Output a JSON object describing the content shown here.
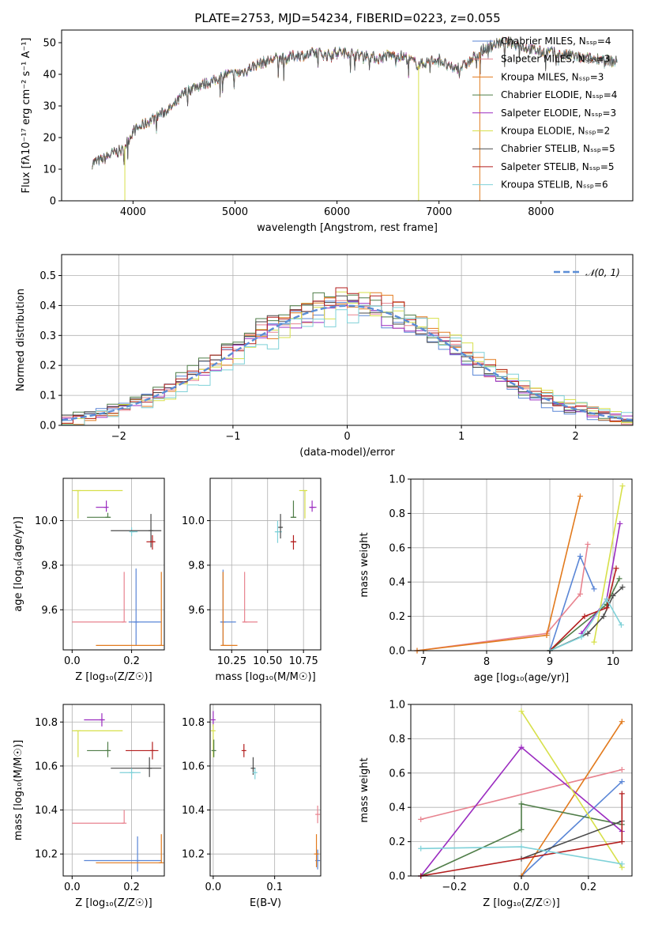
{
  "colors": {
    "c0": "#5a86d6",
    "c1": "#e8838f",
    "c2": "#e27a1d",
    "c3": "#4f7d48",
    "c4": "#9b2cc0",
    "c5": "#d7e04a",
    "c6": "#4a4a4a",
    "c7": "#b31e1e",
    "c8": "#7fd1d8",
    "normal": "#5b8dd6"
  },
  "chart_data": [
    {
      "id": "spectrum",
      "type": "line",
      "title": "PLATE=2753, MJD=54234, FIBERID=0223, z=0.055",
      "xlabel": "wavelength [Angstrom, rest frame]",
      "ylabel": "Flux [f_λ10^-17 erg cm^-2 s^-1 A^-1]",
      "xlim": [
        3300,
        8900
      ],
      "ylim": [
        0,
        54
      ],
      "xticks": [
        4000,
        5000,
        6000,
        7000,
        8000
      ],
      "yticks": [
        0,
        10,
        20,
        30,
        40,
        50
      ],
      "grid": false,
      "legend_position": "right",
      "legend": [
        "Chabrier MILES, N_SSP=4",
        "Salpeter MILES, N_SSP=3",
        "Kroupa MILES, N_SSP=3",
        "Chabrier ELODIE, N_SSP=4",
        "Salpeter ELODIE, N_SSP=3",
        "Kroupa ELODIE, N_SSP=2",
        "Chabrier STELIB, N_SSP=5",
        "Salpeter STELIB, N_SSP=5",
        "Kroupa STELIB, N_SSP=6"
      ],
      "continuum": [
        [
          3600,
          12
        ],
        [
          3700,
          13
        ],
        [
          3800,
          15
        ],
        [
          3900,
          16
        ],
        [
          3950,
          19
        ],
        [
          4000,
          22
        ],
        [
          4100,
          24
        ],
        [
          4200,
          26
        ],
        [
          4300,
          28
        ],
        [
          4400,
          30
        ],
        [
          4500,
          34
        ],
        [
          4600,
          36
        ],
        [
          4700,
          37
        ],
        [
          4800,
          38
        ],
        [
          4900,
          40
        ],
        [
          5000,
          40
        ],
        [
          5100,
          41
        ],
        [
          5200,
          43
        ],
        [
          5300,
          44
        ],
        [
          5400,
          45
        ],
        [
          5500,
          45
        ],
        [
          5600,
          46
        ],
        [
          5700,
          46
        ],
        [
          5800,
          47
        ],
        [
          5900,
          46
        ],
        [
          6000,
          47
        ],
        [
          6100,
          47
        ],
        [
          6200,
          46
        ],
        [
          6300,
          46
        ],
        [
          6400,
          45
        ],
        [
          6500,
          46
        ],
        [
          6600,
          46
        ],
        [
          6700,
          45
        ],
        [
          6800,
          43
        ],
        [
          6900,
          44
        ],
        [
          7000,
          45
        ],
        [
          7100,
          42
        ],
        [
          7200,
          42
        ],
        [
          7300,
          44
        ],
        [
          7400,
          47
        ],
        [
          7500,
          49
        ],
        [
          7600,
          50
        ],
        [
          7700,
          50
        ],
        [
          7800,
          49
        ],
        [
          7900,
          48
        ],
        [
          8000,
          47
        ],
        [
          8100,
          47
        ],
        [
          8200,
          46
        ],
        [
          8300,
          46
        ],
        [
          8400,
          45
        ],
        [
          8500,
          45
        ],
        [
          8600,
          45
        ],
        [
          8700,
          44
        ],
        [
          8750,
          44
        ]
      ],
      "spikes": [
        {
          "x": 3920,
          "y": 0,
          "series": "Kroupa ELODIE"
        },
        {
          "x": 6800,
          "y": 0,
          "series": "Kroupa ELODIE"
        },
        {
          "x": 7400,
          "y": 0,
          "series": "Kroupa MILES"
        }
      ]
    },
    {
      "id": "residuals",
      "type": "histogram",
      "xlabel": "(data-model)/error",
      "ylabel": "Normed distribution",
      "xlim": [
        -2.5,
        2.5
      ],
      "ylim": [
        0,
        0.57
      ],
      "xticks": [
        -2,
        -1,
        0,
        1,
        2
      ],
      "yticks": [
        0.0,
        0.1,
        0.2,
        0.3,
        0.4,
        0.5
      ],
      "grid": true,
      "legend": [
        "N(0,1)"
      ],
      "legend_position": "top-right",
      "bin_width": 0.1
    },
    {
      "id": "age_vs_Z",
      "type": "scatter",
      "xlabel": "Z [log10(Z/Z☉)]",
      "ylabel": "age  [log10(age/yr)]",
      "xlim": [
        -0.03,
        0.31
      ],
      "ylim": [
        9.42,
        10.19
      ],
      "xticks": [
        0.0,
        0.2
      ],
      "yticks": [
        9.6,
        9.8,
        10.0
      ],
      "grid": true,
      "points": [
        {
          "series": "Kroupa ELODIE",
          "x": 0.02,
          "y": 10.135,
          "xlo": 0.0,
          "xhi": 0.17,
          "ylo": 10.01,
          "yhi": 10.135
        },
        {
          "series": "Salpeter ELODIE",
          "x": 0.115,
          "y": 10.06,
          "xlo": 0.08,
          "xhi": 0.115,
          "ylo": 10.04,
          "yhi": 10.09
        },
        {
          "series": "Chabrier ELODIE",
          "x": 0.12,
          "y": 10.015,
          "xlo": 0.05,
          "xhi": 0.13,
          "ylo": 10.015,
          "yhi": 10.035
        },
        {
          "series": "Kroupa STELIB",
          "x": 0.2,
          "y": 9.95,
          "xlo": 0.2,
          "xhi": 0.22,
          "ylo": 9.93,
          "yhi": 9.97
        },
        {
          "series": "Chabrier STELIB",
          "x": 0.265,
          "y": 9.955,
          "xlo": 0.13,
          "xhi": 0.3,
          "ylo": 9.88,
          "yhi": 10.03
        },
        {
          "series": "Salpeter STELIB",
          "x": 0.27,
          "y": 9.905,
          "xlo": 0.25,
          "xhi": 0.28,
          "ylo": 9.87,
          "yhi": 9.935
        },
        {
          "series": "Salpeter MILES",
          "x": 0.175,
          "y": 9.545,
          "xlo": 0.0,
          "xhi": 0.175,
          "ylo": 9.545,
          "yhi": 9.77
        },
        {
          "series": "Chabrier MILES",
          "x": 0.215,
          "y": 9.545,
          "xlo": 0.19,
          "xhi": 0.3,
          "ylo": 9.44,
          "yhi": 9.785
        },
        {
          "series": "Kroupa MILES",
          "x": 0.3,
          "y": 9.44,
          "xlo": 0.08,
          "xhi": 0.3,
          "ylo": 9.44,
          "yhi": 9.77
        }
      ]
    },
    {
      "id": "age_vs_mass",
      "type": "scatter",
      "xlabel": "mass [log10(M/M☉)]",
      "ylabel": "",
      "xlim": [
        10.1,
        10.87
      ],
      "ylim": [
        9.42,
        10.19
      ],
      "xticks": [
        10.25,
        10.5,
        10.75
      ],
      "yticks": [
        9.6,
        9.8,
        10.0
      ],
      "grid": true,
      "points": [
        {
          "series": "Kroupa ELODIE",
          "x": 10.76,
          "y": 10.135,
          "xlo": 10.72,
          "xhi": 10.77,
          "ylo": 10.01,
          "yhi": 10.135
        },
        {
          "series": "Salpeter ELODIE",
          "x": 10.81,
          "y": 10.06,
          "xlo": 10.79,
          "xhi": 10.84,
          "ylo": 10.04,
          "yhi": 10.09
        },
        {
          "series": "Chabrier ELODIE",
          "x": 10.68,
          "y": 10.015,
          "xlo": 10.66,
          "xhi": 10.7,
          "ylo": 10.015,
          "yhi": 10.09
        },
        {
          "series": "Kroupa STELIB",
          "x": 10.57,
          "y": 9.95,
          "xlo": 10.55,
          "xhi": 10.6,
          "ylo": 9.9,
          "yhi": 10.0
        },
        {
          "series": "Chabrier STELIB",
          "x": 10.59,
          "y": 9.97,
          "xlo": 10.58,
          "xhi": 10.6,
          "ylo": 9.92,
          "yhi": 10.03
        },
        {
          "series": "Salpeter STELIB",
          "x": 10.68,
          "y": 9.905,
          "xlo": 10.66,
          "xhi": 10.7,
          "ylo": 9.87,
          "yhi": 9.935
        },
        {
          "series": "Salpeter MILES",
          "x": 10.34,
          "y": 9.545,
          "xlo": 10.33,
          "xhi": 10.43,
          "ylo": 9.545,
          "yhi": 9.77
        },
        {
          "series": "Chabrier MILES",
          "x": 10.19,
          "y": 9.545,
          "xlo": 10.17,
          "xhi": 10.28,
          "ylo": 9.44,
          "yhi": 9.78
        },
        {
          "series": "Kroupa MILES",
          "x": 10.19,
          "y": 9.44,
          "xlo": 10.19,
          "xhi": 10.29,
          "ylo": 9.44,
          "yhi": 9.77
        }
      ]
    },
    {
      "id": "weight_vs_age",
      "type": "line",
      "xlabel": "age  [log10(age/yr)]",
      "ylabel": "mass weight",
      "xlim": [
        6.8,
        10.3
      ],
      "ylim": [
        0.0,
        1.0
      ],
      "xticks": [
        7,
        8,
        9,
        10
      ],
      "yticks": [
        0.0,
        0.2,
        0.4,
        0.6,
        0.8,
        1.0
      ],
      "grid": true,
      "series": [
        {
          "name": "Chabrier MILES",
          "points": [
            [
              9.0,
              0.0
            ],
            [
              9.48,
              0.55
            ],
            [
              9.7,
              0.36
            ]
          ]
        },
        {
          "name": "Salpeter MILES",
          "points": [
            [
              6.9,
              0.0
            ],
            [
              8.95,
              0.1
            ],
            [
              9.48,
              0.33
            ],
            [
              9.6,
              0.62
            ]
          ]
        },
        {
          "name": "Kroupa MILES",
          "points": [
            [
              6.9,
              0.0
            ],
            [
              8.95,
              0.09
            ],
            [
              9.48,
              0.9
            ]
          ]
        },
        {
          "name": "Chabrier ELODIE",
          "points": [
            [
              9.0,
              0.0
            ],
            [
              9.9,
              0.27
            ],
            [
              10.1,
              0.42
            ]
          ]
        },
        {
          "name": "Salpeter ELODIE",
          "points": [
            [
              9.5,
              0.1
            ],
            [
              9.9,
              0.3
            ],
            [
              10.11,
              0.74
            ]
          ]
        },
        {
          "name": "Kroupa ELODIE",
          "points": [
            [
              9.7,
              0.05
            ],
            [
              10.15,
              0.96
            ]
          ]
        },
        {
          "name": "Chabrier STELIB",
          "points": [
            [
              9.0,
              0.0
            ],
            [
              9.6,
              0.1
            ],
            [
              9.85,
              0.2
            ],
            [
              10.0,
              0.32
            ],
            [
              10.15,
              0.37
            ]
          ]
        },
        {
          "name": "Salpeter STELIB",
          "points": [
            [
              9.0,
              0.0
            ],
            [
              9.55,
              0.2
            ],
            [
              9.9,
              0.25
            ],
            [
              10.05,
              0.48
            ]
          ]
        },
        {
          "name": "Kroupa STELIB",
          "points": [
            [
              9.0,
              0.0
            ],
            [
              9.5,
              0.08
            ],
            [
              9.9,
              0.3
            ],
            [
              10.13,
              0.15
            ]
          ]
        }
      ]
    },
    {
      "id": "mass_vs_Z",
      "type": "scatter",
      "xlabel": "Z [log10(Z/Z☉)]",
      "ylabel": "mass [log10(M/M☉)]",
      "xlim": [
        -0.03,
        0.31
      ],
      "ylim": [
        10.1,
        10.88
      ],
      "xticks": [
        0.0,
        0.2
      ],
      "yticks": [
        10.2,
        10.4,
        10.6,
        10.8
      ],
      "grid": true,
      "points": [
        {
          "series": "Salpeter ELODIE",
          "x": 0.1,
          "y": 10.81,
          "xlo": 0.04,
          "xhi": 0.11,
          "ylo": 10.78,
          "yhi": 10.84
        },
        {
          "series": "Kroupa ELODIE",
          "x": 0.02,
          "y": 10.76,
          "xlo": 0.0,
          "xhi": 0.17,
          "ylo": 10.64,
          "yhi": 10.76
        },
        {
          "series": "Chabrier ELODIE",
          "x": 0.12,
          "y": 10.67,
          "xlo": 0.05,
          "xhi": 0.13,
          "ylo": 10.64,
          "yhi": 10.71
        },
        {
          "series": "Salpeter STELIB",
          "x": 0.27,
          "y": 10.67,
          "xlo": 0.18,
          "xhi": 0.29,
          "ylo": 10.63,
          "yhi": 10.71
        },
        {
          "series": "Chabrier STELIB",
          "x": 0.26,
          "y": 10.59,
          "xlo": 0.13,
          "xhi": 0.3,
          "ylo": 10.55,
          "yhi": 10.64
        },
        {
          "series": "Kroupa STELIB",
          "x": 0.2,
          "y": 10.57,
          "xlo": 0.16,
          "xhi": 0.23,
          "ylo": 10.54,
          "yhi": 10.59
        },
        {
          "series": "Salpeter MILES",
          "x": 0.175,
          "y": 10.34,
          "xlo": 0.0,
          "xhi": 0.175,
          "ylo": 10.34,
          "yhi": 10.4
        },
        {
          "series": "Chabrier MILES",
          "x": 0.22,
          "y": 10.17,
          "xlo": 0.04,
          "xhi": 0.3,
          "ylo": 10.12,
          "yhi": 10.28
        },
        {
          "series": "Kroupa MILES",
          "x": 0.3,
          "y": 10.16,
          "xlo": 0.08,
          "xhi": 0.3,
          "ylo": 10.16,
          "yhi": 10.29
        }
      ]
    },
    {
      "id": "mass_vs_ebv",
      "type": "scatter",
      "xlabel": "E(B-V)",
      "ylabel": "",
      "xlim": [
        -0.005,
        0.175
      ],
      "ylim": [
        10.1,
        10.88
      ],
      "xticks": [
        0.0,
        0.1
      ],
      "yticks": [
        10.2,
        10.4,
        10.6,
        10.8
      ],
      "grid": true,
      "points": [
        {
          "series": "Salpeter ELODIE",
          "x": 0.0,
          "y": 10.81,
          "ylo": 10.78,
          "yhi": 10.85
        },
        {
          "series": "Kroupa ELODIE",
          "x": 0.0,
          "y": 10.76,
          "ylo": 10.64,
          "yhi": 10.79
        },
        {
          "series": "Chabrier ELODIE",
          "x": 0.001,
          "y": 10.67,
          "ylo": 10.64,
          "yhi": 10.72
        },
        {
          "series": "Salpeter STELIB",
          "x": 0.05,
          "y": 10.67,
          "ylo": 10.64,
          "yhi": 10.7
        },
        {
          "series": "Chabrier STELIB",
          "x": 0.065,
          "y": 10.59,
          "ylo": 10.56,
          "yhi": 10.64
        },
        {
          "series": "Kroupa STELIB",
          "x": 0.068,
          "y": 10.57,
          "ylo": 10.54,
          "yhi": 10.59
        },
        {
          "series": "Salpeter MILES",
          "x": 0.17,
          "y": 10.38,
          "ylo": 10.34,
          "yhi": 10.42
        },
        {
          "series": "Chabrier MILES",
          "x": 0.17,
          "y": 10.17,
          "ylo": 10.13,
          "yhi": 10.22
        },
        {
          "series": "Kroupa MILES",
          "x": 0.168,
          "y": 10.2,
          "ylo": 10.14,
          "yhi": 10.29
        }
      ]
    },
    {
      "id": "weight_vs_Z",
      "type": "line",
      "xlabel": "Z [log10(Z/Z☉)]",
      "ylabel": "mass weight",
      "xlim": [
        -0.33,
        0.33
      ],
      "ylim": [
        0.0,
        1.0
      ],
      "xticks": [
        -0.2,
        0.0,
        0.2
      ],
      "yticks": [
        0.0,
        0.2,
        0.4,
        0.6,
        0.8,
        1.0
      ],
      "grid": true,
      "series": [
        {
          "name": "Chabrier MILES",
          "points": [
            [
              0.0,
              0.0
            ],
            [
              0.3,
              0.55
            ]
          ]
        },
        {
          "name": "Salpeter MILES",
          "points": [
            [
              -0.3,
              0.33
            ],
            [
              0.3,
              0.62
            ]
          ]
        },
        {
          "name": "Kroupa MILES",
          "points": [
            [
              0.0,
              0.0
            ],
            [
              0.3,
              0.9
            ]
          ]
        },
        {
          "name": "Chabrier ELODIE",
          "points": [
            [
              -0.3,
              0.0
            ],
            [
              0.0,
              0.27
            ],
            [
              0.0,
              0.42
            ],
            [
              0.3,
              0.3
            ]
          ]
        },
        {
          "name": "Salpeter ELODIE",
          "points": [
            [
              -0.3,
              0.0
            ],
            [
              0.0,
              0.75
            ],
            [
              0.3,
              0.26
            ]
          ]
        },
        {
          "name": "Kroupa ELODIE",
          "points": [
            [
              0.0,
              0.96
            ],
            [
              0.3,
              0.05
            ]
          ]
        },
        {
          "name": "Chabrier STELIB",
          "points": [
            [
              0.0,
              0.1
            ],
            [
              0.3,
              0.32
            ]
          ]
        },
        {
          "name": "Salpeter STELIB",
          "points": [
            [
              -0.3,
              0.0
            ],
            [
              0.3,
              0.2
            ],
            [
              0.3,
              0.48
            ]
          ]
        },
        {
          "name": "Kroupa STELIB",
          "points": [
            [
              -0.3,
              0.16
            ],
            [
              0.0,
              0.17
            ],
            [
              0.3,
              0.07
            ]
          ]
        }
      ]
    }
  ]
}
